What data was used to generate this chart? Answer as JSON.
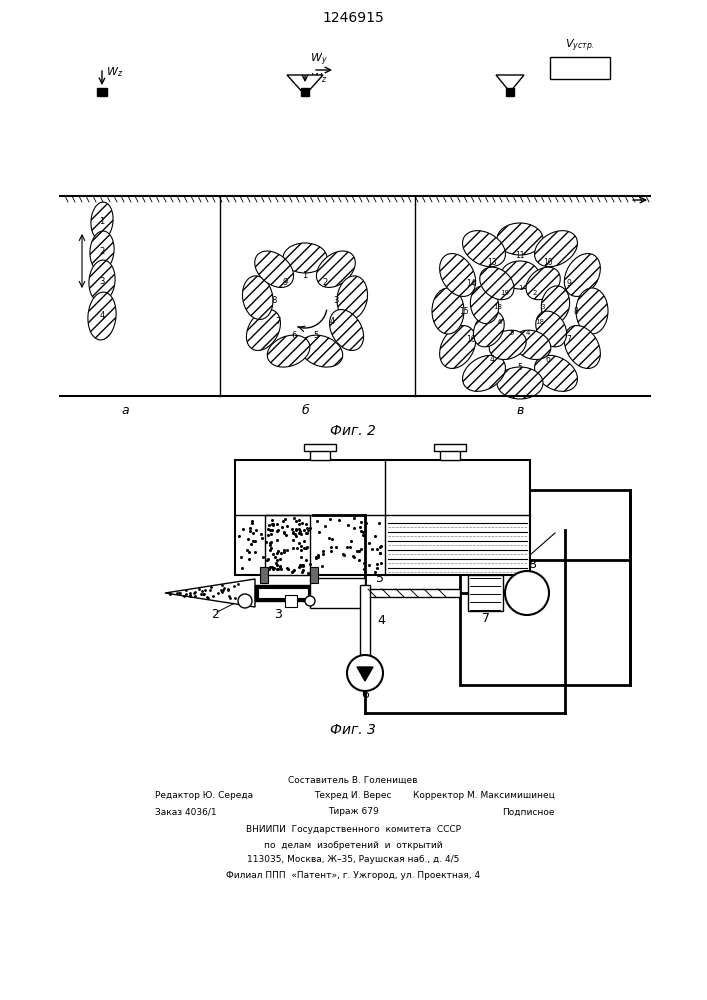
{
  "title": "1246915",
  "fig2_label": "Фиг. 2",
  "fig3_label": "Фиг. 3",
  "bg_color": "#ffffff",
  "line_color": "#000000",
  "footer_col1_line1": "Редактор Ю. Середа",
  "footer_col1_line2": "Заказ 4036/1",
  "footer_col2_line0": "Составитель В. Голенищев",
  "footer_col2_line1": "Техред И. Верес",
  "footer_col2_line2": "Тираж 679",
  "footer_col3_line1": "Корректор М. Максимишинец",
  "footer_col3_line2": "Подписное",
  "footer_line3": "ВНИИПИ  Государственного  комитета  СССР",
  "footer_line4": "по  делам  изобретений  и  открытий",
  "footer_line5": "113035, Москва, Ж–35, Раушская наб., д. 4/5",
  "footer_line6": "Филиал ППП  «Патент», г. Ужгород, ул. Проектная, 4"
}
